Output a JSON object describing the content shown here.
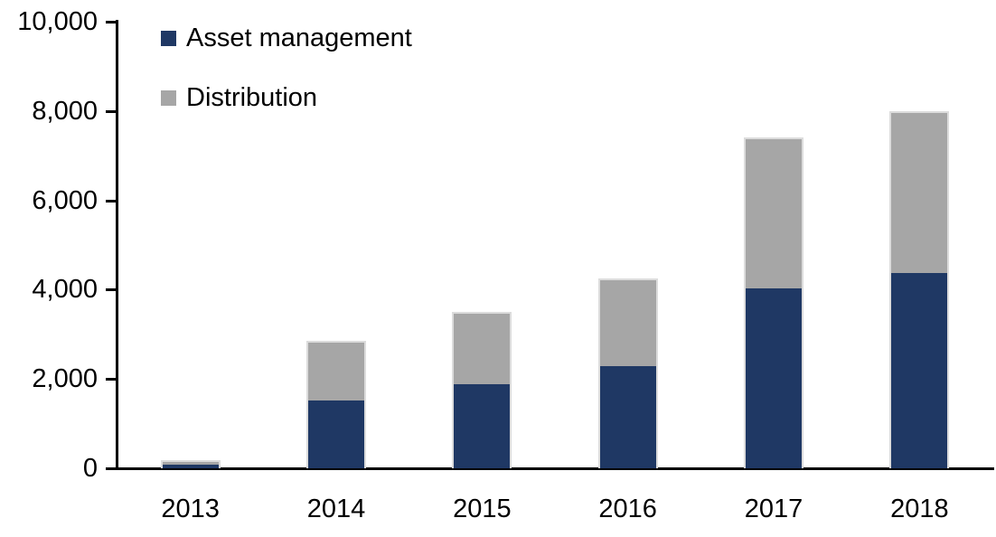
{
  "chart_data": {
    "type": "bar",
    "stacked": true,
    "title": "",
    "xlabel": "",
    "ylabel": "",
    "categories": [
      "2013",
      "2014",
      "2015",
      "2016",
      "2017",
      "2018"
    ],
    "series": [
      {
        "name": "Asset management",
        "color": "#1F3864",
        "values": [
          100,
          1550,
          1900,
          2300,
          4050,
          4400
        ]
      },
      {
        "name": "Distribution",
        "color": "#A6A6A6",
        "values": [
          90,
          1300,
          1600,
          1950,
          3350,
          3600
        ]
      }
    ],
    "totals": [
      190,
      2850,
      3500,
      4250,
      7400,
      8000
    ],
    "ylim": [
      0,
      10000
    ],
    "ytick_interval": 2000,
    "ytick_labels": [
      "0",
      "2,000",
      "4,000",
      "6,000",
      "8,000",
      "10,000"
    ],
    "grid": false,
    "legend_position": "top-left",
    "axis_color": "#000000",
    "text_color": "#000000",
    "bar_border_color": "#DCDCDC",
    "background_color": "#FFFFFF"
  }
}
